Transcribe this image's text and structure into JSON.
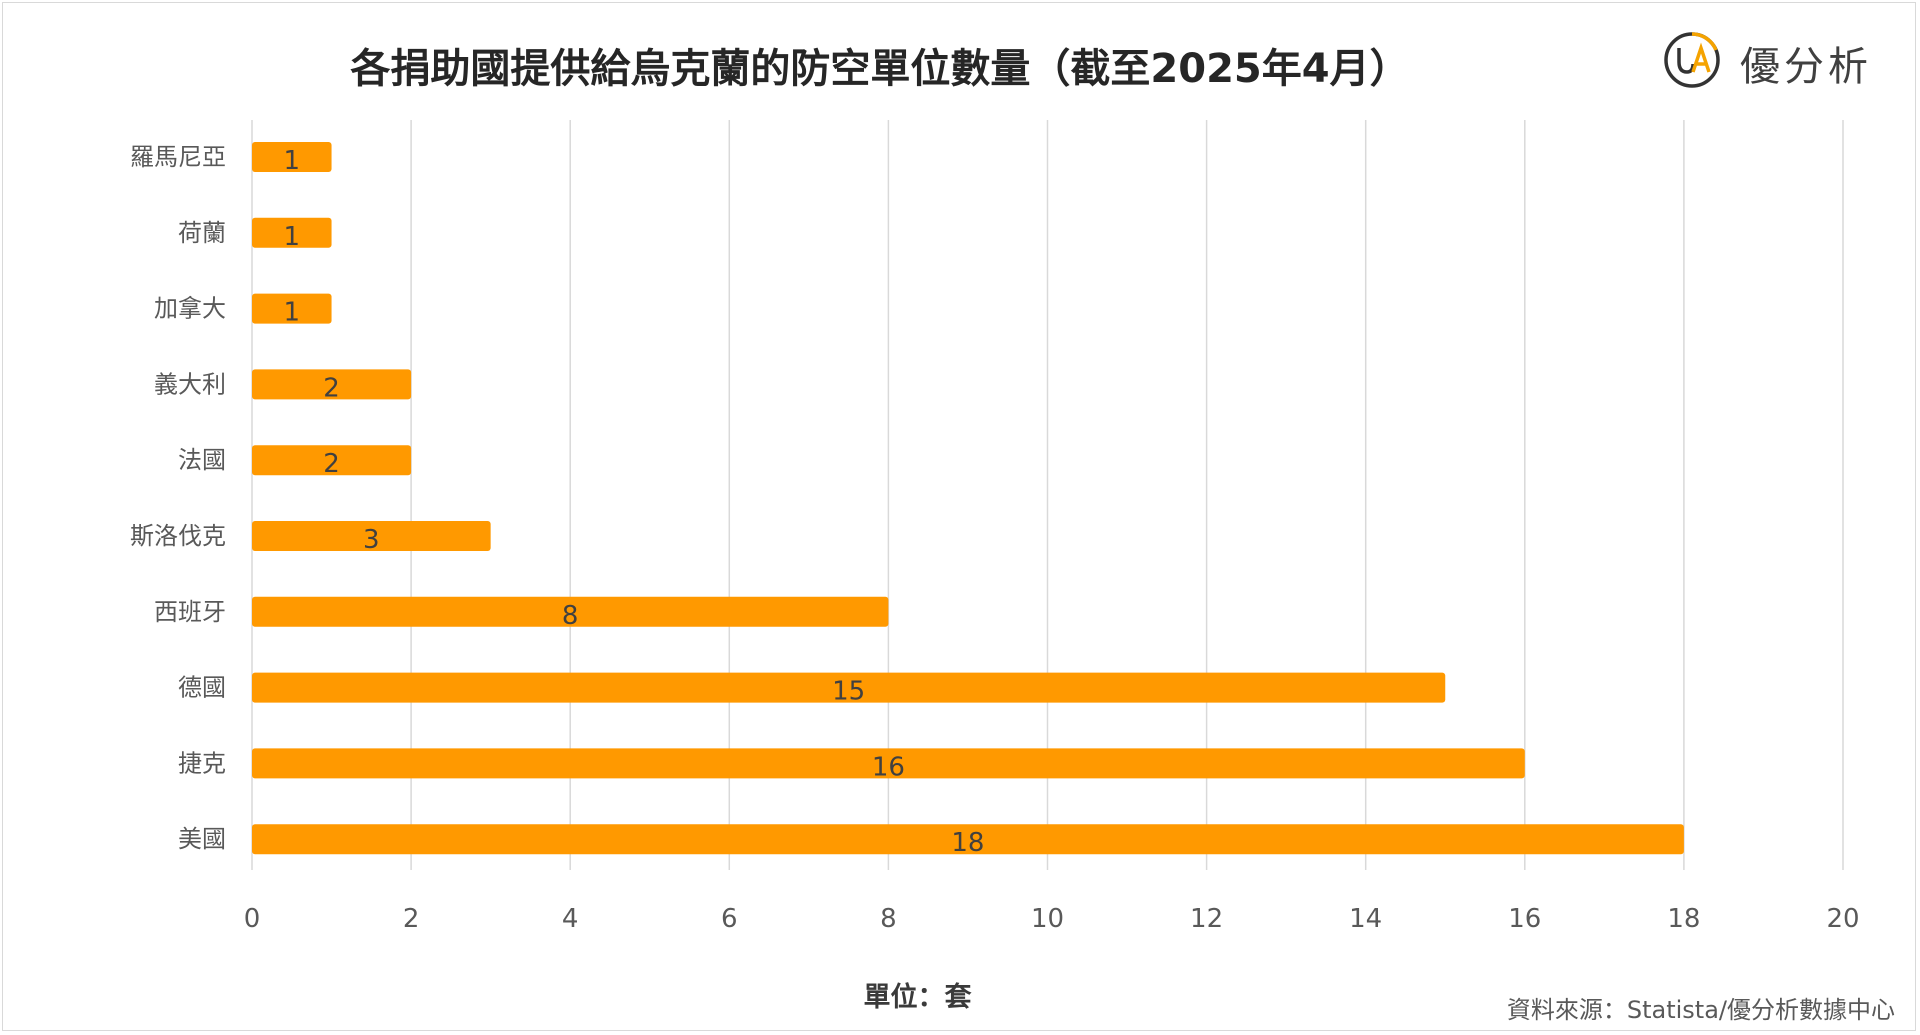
{
  "title": "各捐助國提供給烏克蘭的防空單位數量（截至2025年4月）",
  "logo": {
    "mark": "UA",
    "text": "優分析"
  },
  "source": "資料來源：Statista/優分析數據中心",
  "colors": {
    "bar": "#FF9900",
    "grid": "#D9D9D9",
    "logo_ring": "#333333",
    "logo_accent": "#F5A300"
  },
  "chart_data": {
    "type": "bar",
    "orientation": "horizontal",
    "title": "各捐助國提供給烏克蘭的防空單位數量（截至2025年4月）",
    "xlabel": "單位：套",
    "ylabel": "",
    "categories": [
      "羅馬尼亞",
      "荷蘭",
      "加拿大",
      "義大利",
      "法國",
      "斯洛伐克",
      "西班牙",
      "德國",
      "捷克",
      "美國"
    ],
    "values": [
      1,
      1,
      1,
      2,
      2,
      3,
      8,
      15,
      16,
      18
    ],
    "xlim": [
      0,
      20
    ],
    "xticks": [
      0,
      2,
      4,
      6,
      8,
      10,
      12,
      14,
      16,
      18,
      20
    ],
    "grid": true,
    "data_labels": true,
    "legend": "none"
  }
}
